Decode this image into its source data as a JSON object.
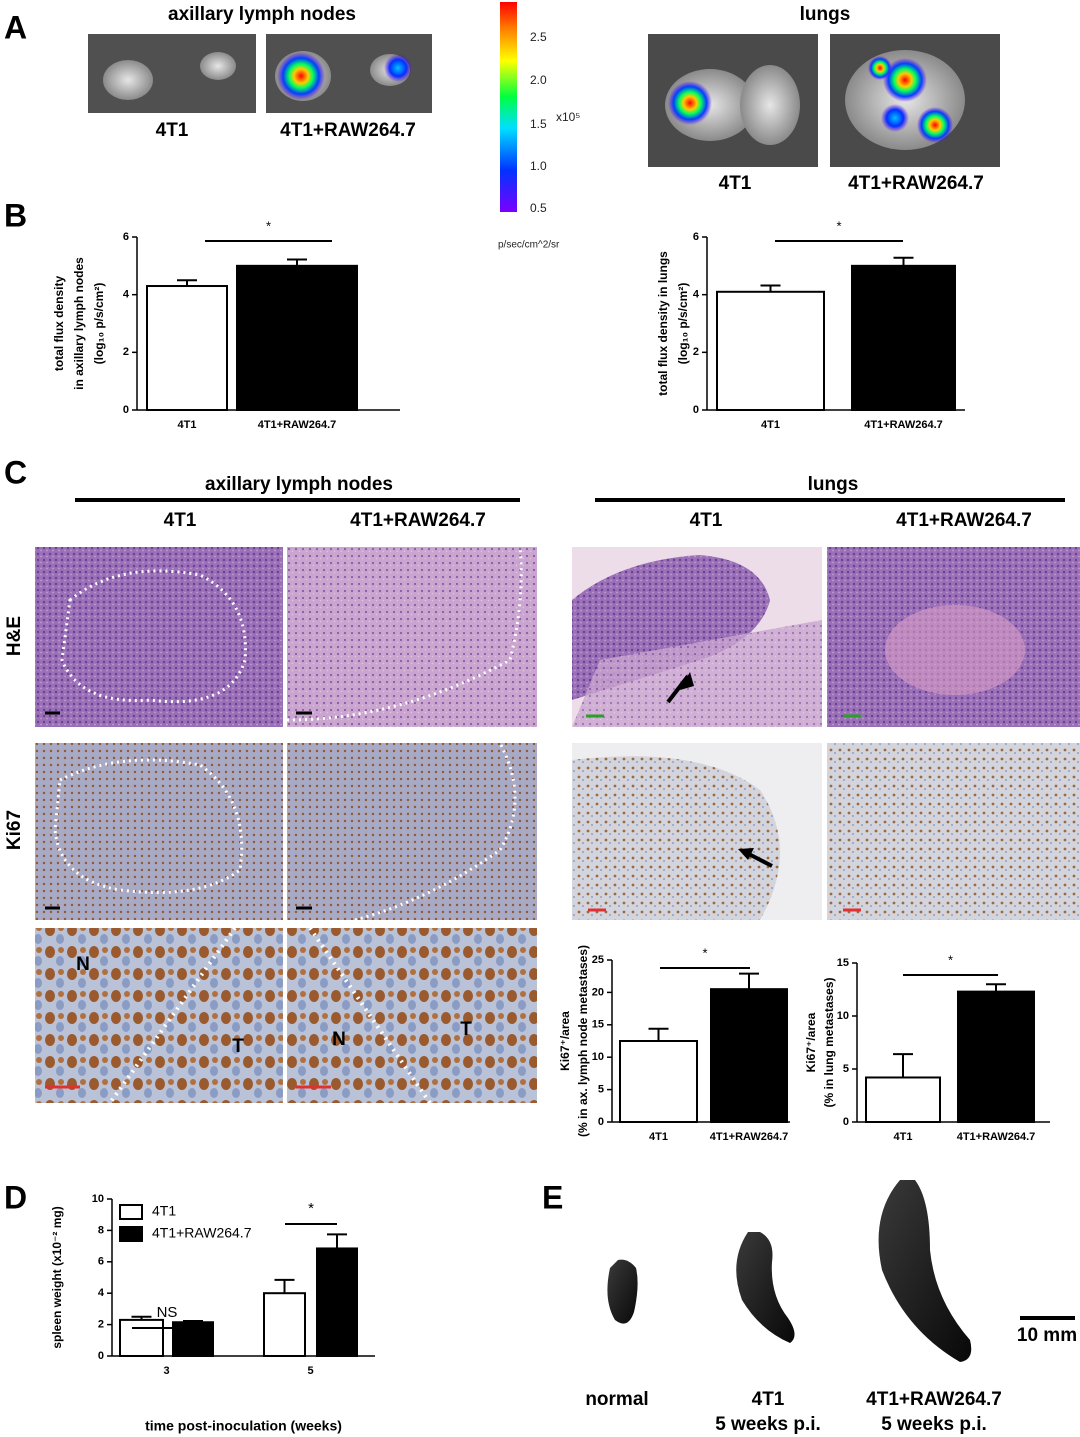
{
  "chart_data": [
    {
      "type": "bar",
      "ylabel": [
        "total flux density",
        "in axillary lymph nodes",
        "(log₁₀ p/s/cm²)"
      ],
      "categories": [
        "4T1",
        "4T1+RAW264.7"
      ],
      "values": [
        4.3,
        5.0
      ],
      "errors": [
        0.2,
        0.22
      ],
      "colors": [
        "#ffffff",
        "#000000"
      ],
      "ylim": [
        0,
        6
      ],
      "yticks": [
        0,
        2,
        4,
        6
      ],
      "annotation": "*"
    },
    {
      "type": "bar",
      "ylabel": [
        "total flux density in lungs",
        "(log₁₀ p/s/cm²)"
      ],
      "categories": [
        "4T1",
        "4T1+RAW264.7"
      ],
      "values": [
        4.1,
        5.0
      ],
      "errors": [
        0.22,
        0.28
      ],
      "colors": [
        "#ffffff",
        "#000000"
      ],
      "ylim": [
        0,
        6
      ],
      "yticks": [
        0,
        2,
        4,
        6
      ],
      "annotation": "*"
    },
    {
      "type": "bar",
      "ylabel": [
        "Ki67⁺/area",
        "(% in ax. lymph node metastases)"
      ],
      "categories": [
        "4T1",
        "4T1+RAW264.7"
      ],
      "values": [
        12.5,
        20.5
      ],
      "errors": [
        1.9,
        2.4
      ],
      "colors": [
        "#ffffff",
        "#000000"
      ],
      "ylim": [
        0,
        25
      ],
      "yticks": [
        0,
        5,
        10,
        15,
        20,
        25
      ],
      "annotation": "*"
    },
    {
      "type": "bar",
      "ylabel": [
        "Ki67⁺/area",
        "(% in lung metastases)"
      ],
      "categories": [
        "4T1",
        "4T1+RAW264.7"
      ],
      "values": [
        4.2,
        12.3
      ],
      "errors": [
        2.2,
        0.7
      ],
      "colors": [
        "#ffffff",
        "#000000"
      ],
      "ylim": [
        0,
        15
      ],
      "yticks": [
        0,
        5,
        10,
        15
      ],
      "annotation": "*"
    },
    {
      "type": "bar",
      "ylabel": [
        "spleen weight (x10⁻² mg)"
      ],
      "xlabel": "time post-inoculation (weeks)",
      "categories": [
        "3",
        "5"
      ],
      "series": [
        {
          "name": "4T1",
          "color": "#ffffff",
          "values": [
            2.3,
            4.0
          ],
          "errors": [
            0.2,
            0.85
          ]
        },
        {
          "name": "4T1+RAW264.7",
          "color": "#000000",
          "values": [
            2.15,
            6.85
          ],
          "errors": [
            0.08,
            0.9
          ]
        }
      ],
      "ylim": [
        0,
        10
      ],
      "yticks": [
        0,
        2,
        4,
        6,
        8,
        10
      ],
      "annotations": [
        "NS",
        "*"
      ]
    }
  ],
  "figure": {
    "panel_labels": [
      "A",
      "B",
      "C",
      "D",
      "E"
    ],
    "imaging": {
      "titles": [
        "axillary lymph nodes",
        "lungs"
      ],
      "captions": [
        "4T1",
        "4T1+RAW264.7",
        "4T1",
        "4T1+RAW264.7"
      ]
    },
    "colorbar": {
      "ticks": [
        "2.5",
        "2.0",
        "1.5",
        "1.0",
        "0.5"
      ],
      "scale": "x10⁵",
      "unit": "p/sec/cm^2/sr"
    },
    "histology": {
      "groups": [
        "axillary lymph nodes",
        "lungs"
      ],
      "columns": [
        "4T1",
        "4T1+RAW264.7",
        "4T1",
        "4T1+RAW264.7"
      ],
      "rows": [
        "H&E",
        "Ki67"
      ],
      "regions": [
        "N",
        "T",
        "N",
        "T"
      ]
    },
    "spleens": {
      "captions": [
        [
          "normal"
        ],
        [
          "4T1",
          "5 weeks p.i."
        ],
        [
          "4T1+RAW264.7",
          "5 weeks p.i."
        ]
      ],
      "scale": "10 mm"
    }
  }
}
